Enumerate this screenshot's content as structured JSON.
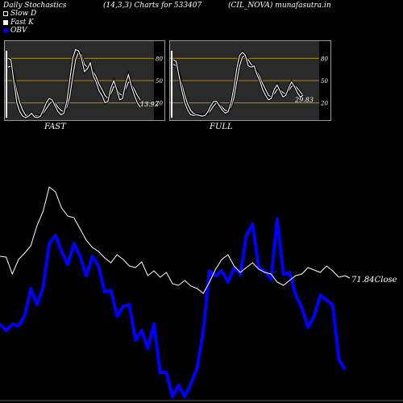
{
  "header": {
    "left": "Daily Stochastics",
    "mid": "(14,3,3) Charts for 533407",
    "right": "(CIL_NOVA) munafasutra.in"
  },
  "legend": [
    {
      "label": "Slow  D",
      "swatch": "hollow"
    },
    {
      "label": "Fast K",
      "swatch": "filled"
    },
    {
      "label": "OBV",
      "swatch": "blue"
    }
  ],
  "colors": {
    "background": "#000000",
    "stoch_band": "#b8860b",
    "stoch_line": "#ffffff",
    "obv": "#0000ff",
    "close": "#ffffff",
    "panel_border": "#9a9a9a"
  },
  "chart_data": [
    {
      "type": "line",
      "title": "FAST",
      "yticks": [
        20,
        50,
        80
      ],
      "bands": [
        20,
        50,
        80
      ],
      "ylim": [
        0,
        100
      ],
      "last_value_label": "13.92",
      "series": [
        {
          "name": "Slow  D",
          "values": [
            68,
            70,
            55,
            35,
            20,
            10,
            3,
            3,
            5,
            3,
            2,
            3,
            6,
            12,
            18,
            22,
            20,
            14,
            10,
            8,
            14,
            28,
            55,
            78,
            88,
            85,
            72,
            68,
            70,
            62,
            55,
            45,
            38,
            30,
            26,
            32,
            42,
            40,
            32,
            30,
            38,
            48,
            45,
            38,
            30,
            24
          ]
        },
        {
          "name": "Fast K",
          "values": [
            80,
            78,
            48,
            20,
            8,
            2,
            0,
            2,
            6,
            1,
            0,
            2,
            10,
            20,
            26,
            24,
            16,
            8,
            4,
            6,
            22,
            50,
            80,
            92,
            90,
            80,
            62,
            66,
            74,
            56,
            48,
            36,
            30,
            20,
            22,
            40,
            50,
            38,
            24,
            26,
            46,
            58,
            42,
            30,
            20,
            14
          ]
        }
      ]
    },
    {
      "type": "line",
      "title": "FULL",
      "yticks": [
        20,
        50,
        80
      ],
      "bands": [
        20,
        50,
        80
      ],
      "ylim": [
        0,
        100
      ],
      "last_value_label": "29.83",
      "series": [
        {
          "name": "Slow  D",
          "values": [
            72,
            70,
            60,
            45,
            30,
            18,
            10,
            6,
            5,
            4,
            3,
            4,
            6,
            10,
            16,
            20,
            18,
            14,
            10,
            9,
            14,
            26,
            48,
            70,
            82,
            84,
            78,
            72,
            68,
            62,
            55,
            46,
            38,
            30,
            28,
            32,
            38,
            38,
            34,
            32,
            36,
            42,
            44,
            40,
            35,
            30
          ]
        },
        {
          "name": "Fast K",
          "values": [
            78,
            76,
            56,
            36,
            20,
            10,
            4,
            3,
            4,
            3,
            2,
            3,
            8,
            16,
            22,
            22,
            16,
            10,
            6,
            8,
            20,
            40,
            66,
            84,
            88,
            84,
            70,
            68,
            70,
            58,
            50,
            38,
            30,
            24,
            26,
            38,
            44,
            36,
            28,
            30,
            40,
            48,
            42,
            34,
            28,
            30
          ]
        }
      ]
    },
    {
      "type": "line",
      "series": [
        {
          "name": "Close",
          "values": [
            318,
            319,
            340,
            322,
            314,
            305,
            280,
            262,
            232,
            238,
            258,
            268,
            270,
            284,
            298,
            307,
            312,
            320,
            326,
            316,
            322,
            330,
            332,
            325,
            342,
            336,
            344,
            338,
            352,
            354,
            348,
            355,
            358,
            364,
            350,
            334,
            322,
            316,
            330,
            338,
            332,
            326,
            334,
            338,
            340,
            350,
            354,
            348,
            342,
            340,
            332,
            335,
            338,
            330,
            336,
            344,
            342
          ]
        },
        {
          "name": "OBV",
          "values": [
            402,
            410,
            402,
            404,
            392,
            358,
            378,
            356,
            302,
            292,
            312,
            328,
            302,
            318,
            342,
            318,
            330,
            362,
            360,
            392,
            380,
            378,
            422,
            410,
            432,
            402,
            462,
            462,
            492,
            478,
            492,
            476,
            456,
            410,
            336,
            342,
            336,
            350,
            332,
            340,
            292,
            278,
            332,
            336,
            346,
            272,
            340,
            338,
            366,
            382,
            406,
            392,
            366,
            372,
            378,
            446,
            458
          ]
        }
      ],
      "last_value_label": "71.84Close"
    }
  ]
}
